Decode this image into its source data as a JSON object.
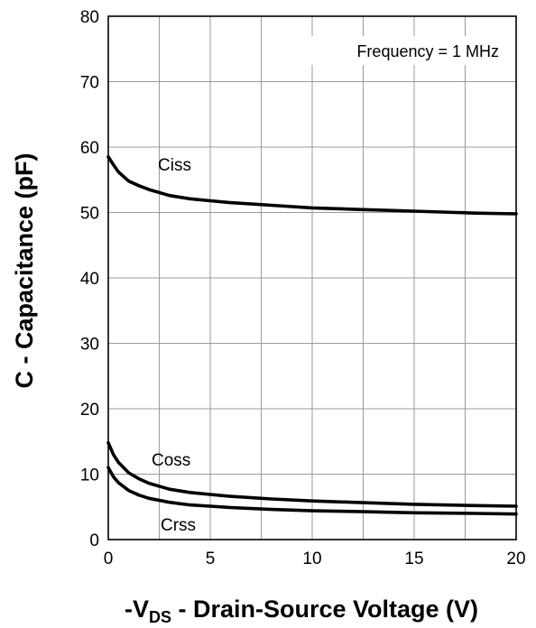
{
  "chart_data": {
    "type": "line",
    "x_ticks": [
      0,
      5,
      10,
      15,
      20
    ],
    "y_ticks": [
      0,
      10,
      20,
      30,
      40,
      50,
      60,
      70,
      80
    ],
    "xlim": [
      0,
      20
    ],
    "ylim": [
      0,
      80
    ],
    "grid": true,
    "ylabel": "C - Capacitance (pF)",
    "xlabel_parts": {
      "prefix": "-V",
      "subscript": "DS",
      "rest": " - Drain-Source Voltage (V)"
    },
    "annotation": "Frequency = 1 MHz",
    "series": [
      {
        "name": "Ciss",
        "x": [
          0,
          0.25,
          0.5,
          1,
          1.5,
          2,
          3,
          4,
          5,
          6,
          8,
          10,
          12,
          15,
          18,
          20
        ],
        "y": [
          58.5,
          57.3,
          56.2,
          54.8,
          54.1,
          53.5,
          52.6,
          52.1,
          51.8,
          51.5,
          51.1,
          50.7,
          50.5,
          50.2,
          49.9,
          49.8
        ]
      },
      {
        "name": "Coss",
        "x": [
          0,
          0.25,
          0.5,
          1,
          1.5,
          2,
          3,
          4,
          5,
          6,
          8,
          10,
          12,
          15,
          18,
          20
        ],
        "y": [
          14.8,
          13.0,
          11.8,
          10.2,
          9.3,
          8.6,
          7.7,
          7.2,
          6.9,
          6.6,
          6.2,
          5.9,
          5.7,
          5.4,
          5.2,
          5.1
        ]
      },
      {
        "name": "Crss",
        "x": [
          0,
          0.25,
          0.5,
          1,
          1.5,
          2,
          3,
          4,
          5,
          6,
          8,
          10,
          12,
          15,
          18,
          20
        ],
        "y": [
          11.0,
          9.6,
          8.7,
          7.5,
          6.8,
          6.3,
          5.7,
          5.3,
          5.1,
          4.9,
          4.6,
          4.4,
          4.3,
          4.1,
          4.0,
          3.9
        ]
      }
    ]
  }
}
